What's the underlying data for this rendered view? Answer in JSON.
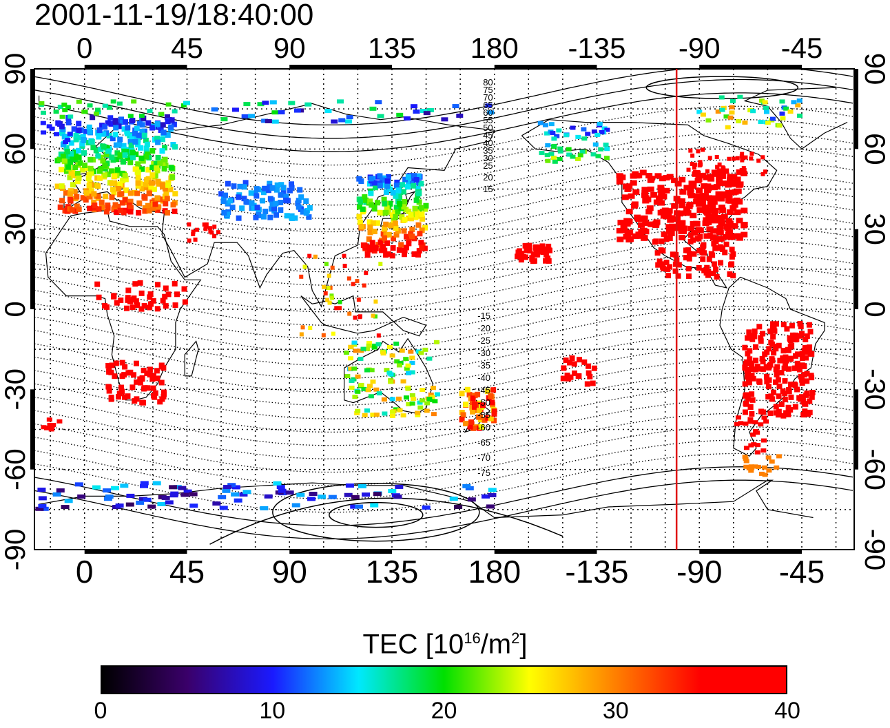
{
  "title": "2001-11-19/18:40:00",
  "map": {
    "lon_top_labels": [
      "0",
      "45",
      "90",
      "135",
      "180",
      "-135",
      "-90",
      "-45"
    ],
    "lon_bottom_labels": [
      "0",
      "45",
      "90",
      "135",
      "180",
      "-135",
      "-90",
      "-45"
    ],
    "lat_left_labels": [
      "90",
      "60",
      "30",
      "0",
      "-30",
      "-60",
      "-90"
    ],
    "lat_right_labels": [
      "90",
      "60",
      "30",
      "0",
      "-30",
      "-60",
      "-90"
    ],
    "contour_labels_north": [
      "80",
      "75",
      "70",
      "65",
      "60",
      "55",
      "50",
      "45",
      "40",
      "35",
      "30",
      "25",
      "20",
      "15"
    ],
    "contour_labels_south": [
      "-15",
      "-20",
      "-25",
      "-30",
      "-35",
      "-40",
      "-45",
      "-50",
      "-55",
      "-60",
      "-65",
      "-70",
      "-75"
    ],
    "terminator_longitude": -100,
    "terminator_color": "#e01010"
  },
  "colorbar": {
    "title_main": "TEC  [10",
    "title_exp": "16",
    "title_unit": "/m",
    "title_unit_exp": "2",
    "title_close": "]",
    "ticks": [
      "0",
      "10",
      "20",
      "30",
      "40"
    ],
    "min": 0,
    "max": 40,
    "colors": [
      "#000000",
      "#3a006a",
      "#1a1aff",
      "#00e8ff",
      "#00e000",
      "#ffff00",
      "#ff8000",
      "#ff0000",
      "#ff0000"
    ]
  },
  "data_regions": [
    {
      "name": "north-america",
      "tec": 40
    },
    {
      "name": "south-america",
      "tec": 40
    },
    {
      "name": "europe",
      "tec": 14
    },
    {
      "name": "japan",
      "tec": 15
    },
    {
      "name": "australia",
      "tec": 20
    },
    {
      "name": "antarctica",
      "tec": 8
    }
  ]
}
